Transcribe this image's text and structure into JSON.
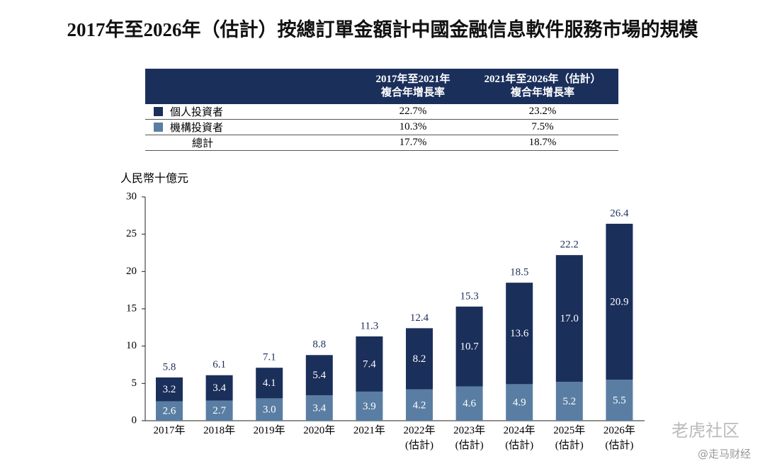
{
  "chart_data": {
    "type": "stacked_bar",
    "title": "2017年至2026年（估計）按總訂單金額計中國金融信息軟件服務市場的規模",
    "ylabel": "人民幣十億元",
    "categories": [
      "2017年",
      "2018年",
      "2019年",
      "2020年",
      "2021年",
      "2022年\n(估計)",
      "2023年\n(估計)",
      "2024年\n(估計)",
      "2025年\n(估計)",
      "2026年\n(估計)"
    ],
    "series": [
      {
        "name": "機構投資者",
        "color": "#5a7ea3",
        "values": [
          2.6,
          2.7,
          3.0,
          3.4,
          3.9,
          4.2,
          4.6,
          4.9,
          5.2,
          5.5
        ],
        "value_labels": [
          "2.6",
          "2.7",
          "3.0",
          "3.4",
          "3.9",
          "4.2",
          "4.6",
          "4.9",
          "5.2",
          "5.5"
        ]
      },
      {
        "name": "個人投資者",
        "color": "#1b2f5b",
        "values": [
          3.2,
          3.4,
          4.1,
          5.4,
          7.4,
          8.2,
          10.7,
          13.6,
          17.0,
          20.9
        ],
        "value_labels": [
          "3.2",
          "3.4",
          "4.1",
          "5.4",
          "7.4",
          "8.2",
          "10.7",
          "13.6",
          "17.0",
          "20.9"
        ]
      }
    ],
    "totals": [
      5.8,
      6.1,
      7.1,
      8.8,
      11.3,
      12.4,
      15.3,
      18.5,
      22.2,
      26.4
    ],
    "ylim": [
      0,
      30
    ],
    "yticks": [
      0,
      5,
      10,
      15,
      20,
      25,
      30
    ]
  },
  "table": {
    "columns": [
      "2017年至2021年\n複合年增長率",
      "2021年至2026年（估計）\n複合年增長率"
    ],
    "rows": [
      [
        "22.7%",
        "23.2%"
      ],
      [
        "10.3%",
        "7.5%"
      ]
    ],
    "total": {
      "label": "總計",
      "values": [
        "17.7%",
        "18.7%"
      ]
    }
  },
  "watermark": {
    "logo": "老虎社区",
    "account": "@走马财经"
  }
}
